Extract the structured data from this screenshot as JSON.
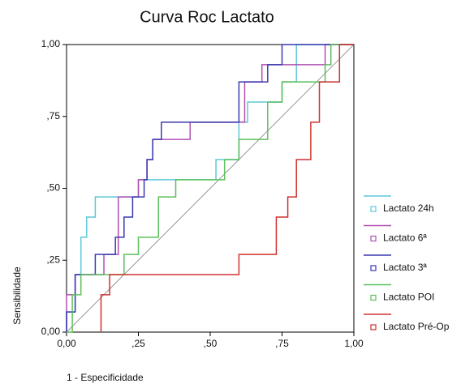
{
  "chart_data": {
    "type": "line",
    "title": "Curva Roc Lactato",
    "x_label": "1 - Especificidade",
    "y_label": "Sensibilidade",
    "xlim": [
      0,
      1
    ],
    "ylim": [
      0,
      1
    ],
    "xticks": [
      {
        "value": 0,
        "label": "0,00"
      },
      {
        "value": 0.25,
        "label": ",25"
      },
      {
        "value": 0.5,
        "label": ",50"
      },
      {
        "value": 0.75,
        "label": ",75"
      },
      {
        "value": 1,
        "label": "1,00"
      }
    ],
    "yticks": [
      {
        "value": 0,
        "label": "0,00"
      },
      {
        "value": 0.25,
        "label": ",25"
      },
      {
        "value": 0.5,
        "label": ",50"
      },
      {
        "value": 0.75,
        "label": ",75"
      },
      {
        "value": 1,
        "label": "1,00"
      }
    ],
    "series": [
      {
        "name": "Lactato 24h",
        "color": "#5cc8d8",
        "x": [
          0,
          0,
          0.03,
          0.03,
          0.05,
          0.05,
          0.07,
          0.07,
          0.1,
          0.1,
          0.25,
          0.25,
          0.52,
          0.52,
          0.6,
          0.6,
          0.63,
          0.63,
          0.75,
          0.75,
          0.8,
          0.8,
          1
        ],
        "y": [
          0,
          0.07,
          0.07,
          0.2,
          0.2,
          0.33,
          0.33,
          0.4,
          0.4,
          0.47,
          0.47,
          0.53,
          0.53,
          0.6,
          0.6,
          0.73,
          0.73,
          0.8,
          0.8,
          0.87,
          0.87,
          1,
          1
        ]
      },
      {
        "name": "Lactato 6ª",
        "color": "#b050b0",
        "x": [
          0,
          0,
          0.03,
          0.03,
          0.13,
          0.13,
          0.18,
          0.18,
          0.25,
          0.25,
          0.28,
          0.28,
          0.3,
          0.3,
          0.43,
          0.43,
          0.62,
          0.62,
          0.68,
          0.68,
          0.9,
          0.9,
          1
        ],
        "y": [
          0,
          0.13,
          0.13,
          0.2,
          0.2,
          0.27,
          0.27,
          0.47,
          0.47,
          0.53,
          0.53,
          0.6,
          0.6,
          0.67,
          0.67,
          0.73,
          0.73,
          0.87,
          0.87,
          0.93,
          0.93,
          1,
          1
        ]
      },
      {
        "name": "Lactato 3ª",
        "color": "#3a3ab0",
        "x": [
          0,
          0,
          0.03,
          0.03,
          0.1,
          0.1,
          0.17,
          0.17,
          0.2,
          0.2,
          0.23,
          0.23,
          0.27,
          0.27,
          0.28,
          0.28,
          0.3,
          0.3,
          0.33,
          0.33,
          0.6,
          0.6,
          0.7,
          0.7,
          0.75,
          0.75,
          1
        ],
        "y": [
          0,
          0.07,
          0.07,
          0.2,
          0.2,
          0.27,
          0.27,
          0.33,
          0.33,
          0.4,
          0.4,
          0.47,
          0.47,
          0.53,
          0.53,
          0.6,
          0.6,
          0.67,
          0.67,
          0.73,
          0.73,
          0.87,
          0.87,
          0.93,
          0.93,
          1,
          1
        ]
      },
      {
        "name": "Lactato POI",
        "color": "#5cc05c",
        "x": [
          0,
          0.02,
          0.02,
          0.05,
          0.05,
          0.2,
          0.2,
          0.25,
          0.25,
          0.32,
          0.32,
          0.38,
          0.38,
          0.55,
          0.55,
          0.6,
          0.6,
          0.7,
          0.7,
          0.75,
          0.75,
          0.9,
          0.9,
          0.92,
          0.92,
          1
        ],
        "y": [
          0,
          0,
          0.13,
          0.13,
          0.2,
          0.2,
          0.27,
          0.27,
          0.33,
          0.33,
          0.47,
          0.47,
          0.53,
          0.53,
          0.6,
          0.6,
          0.67,
          0.67,
          0.8,
          0.8,
          0.87,
          0.87,
          0.93,
          0.93,
          1,
          1
        ]
      },
      {
        "name": "Lactato Pré-Op",
        "color": "#d03030",
        "x": [
          0.12,
          0.12,
          0.15,
          0.15,
          0.6,
          0.6,
          0.73,
          0.73,
          0.77,
          0.77,
          0.8,
          0.8,
          0.85,
          0.85,
          0.88,
          0.88,
          0.95,
          0.95,
          1
        ],
        "y": [
          0,
          0.13,
          0.13,
          0.2,
          0.2,
          0.27,
          0.27,
          0.4,
          0.4,
          0.47,
          0.47,
          0.6,
          0.6,
          0.73,
          0.73,
          0.87,
          0.87,
          1,
          1
        ]
      }
    ]
  }
}
